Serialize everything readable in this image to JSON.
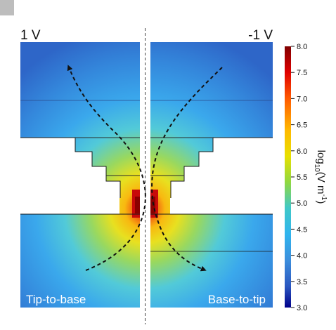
{
  "panel_letter": "",
  "voltage_left": "1 V",
  "voltage_right": "-1 V",
  "caption_left": "Tip-to-base",
  "caption_right": "Base-to-tip",
  "colorbar": {
    "label": "log10(V m-1)",
    "min": 3.0,
    "max": 8.0,
    "ticks": [
      "8.0",
      "7.5",
      "7.0",
      "6.5",
      "6.0",
      "5.5",
      "5.0",
      "4.5",
      "4.0",
      "3.5",
      "3.0"
    ],
    "colors": [
      "#800000",
      "#e00000",
      "#ff5a00",
      "#ffb800",
      "#e8e000",
      "#90d840",
      "#40c8c8",
      "#30b4ee",
      "#3c8edc",
      "#2a56c0",
      "#00008a"
    ]
  }
}
